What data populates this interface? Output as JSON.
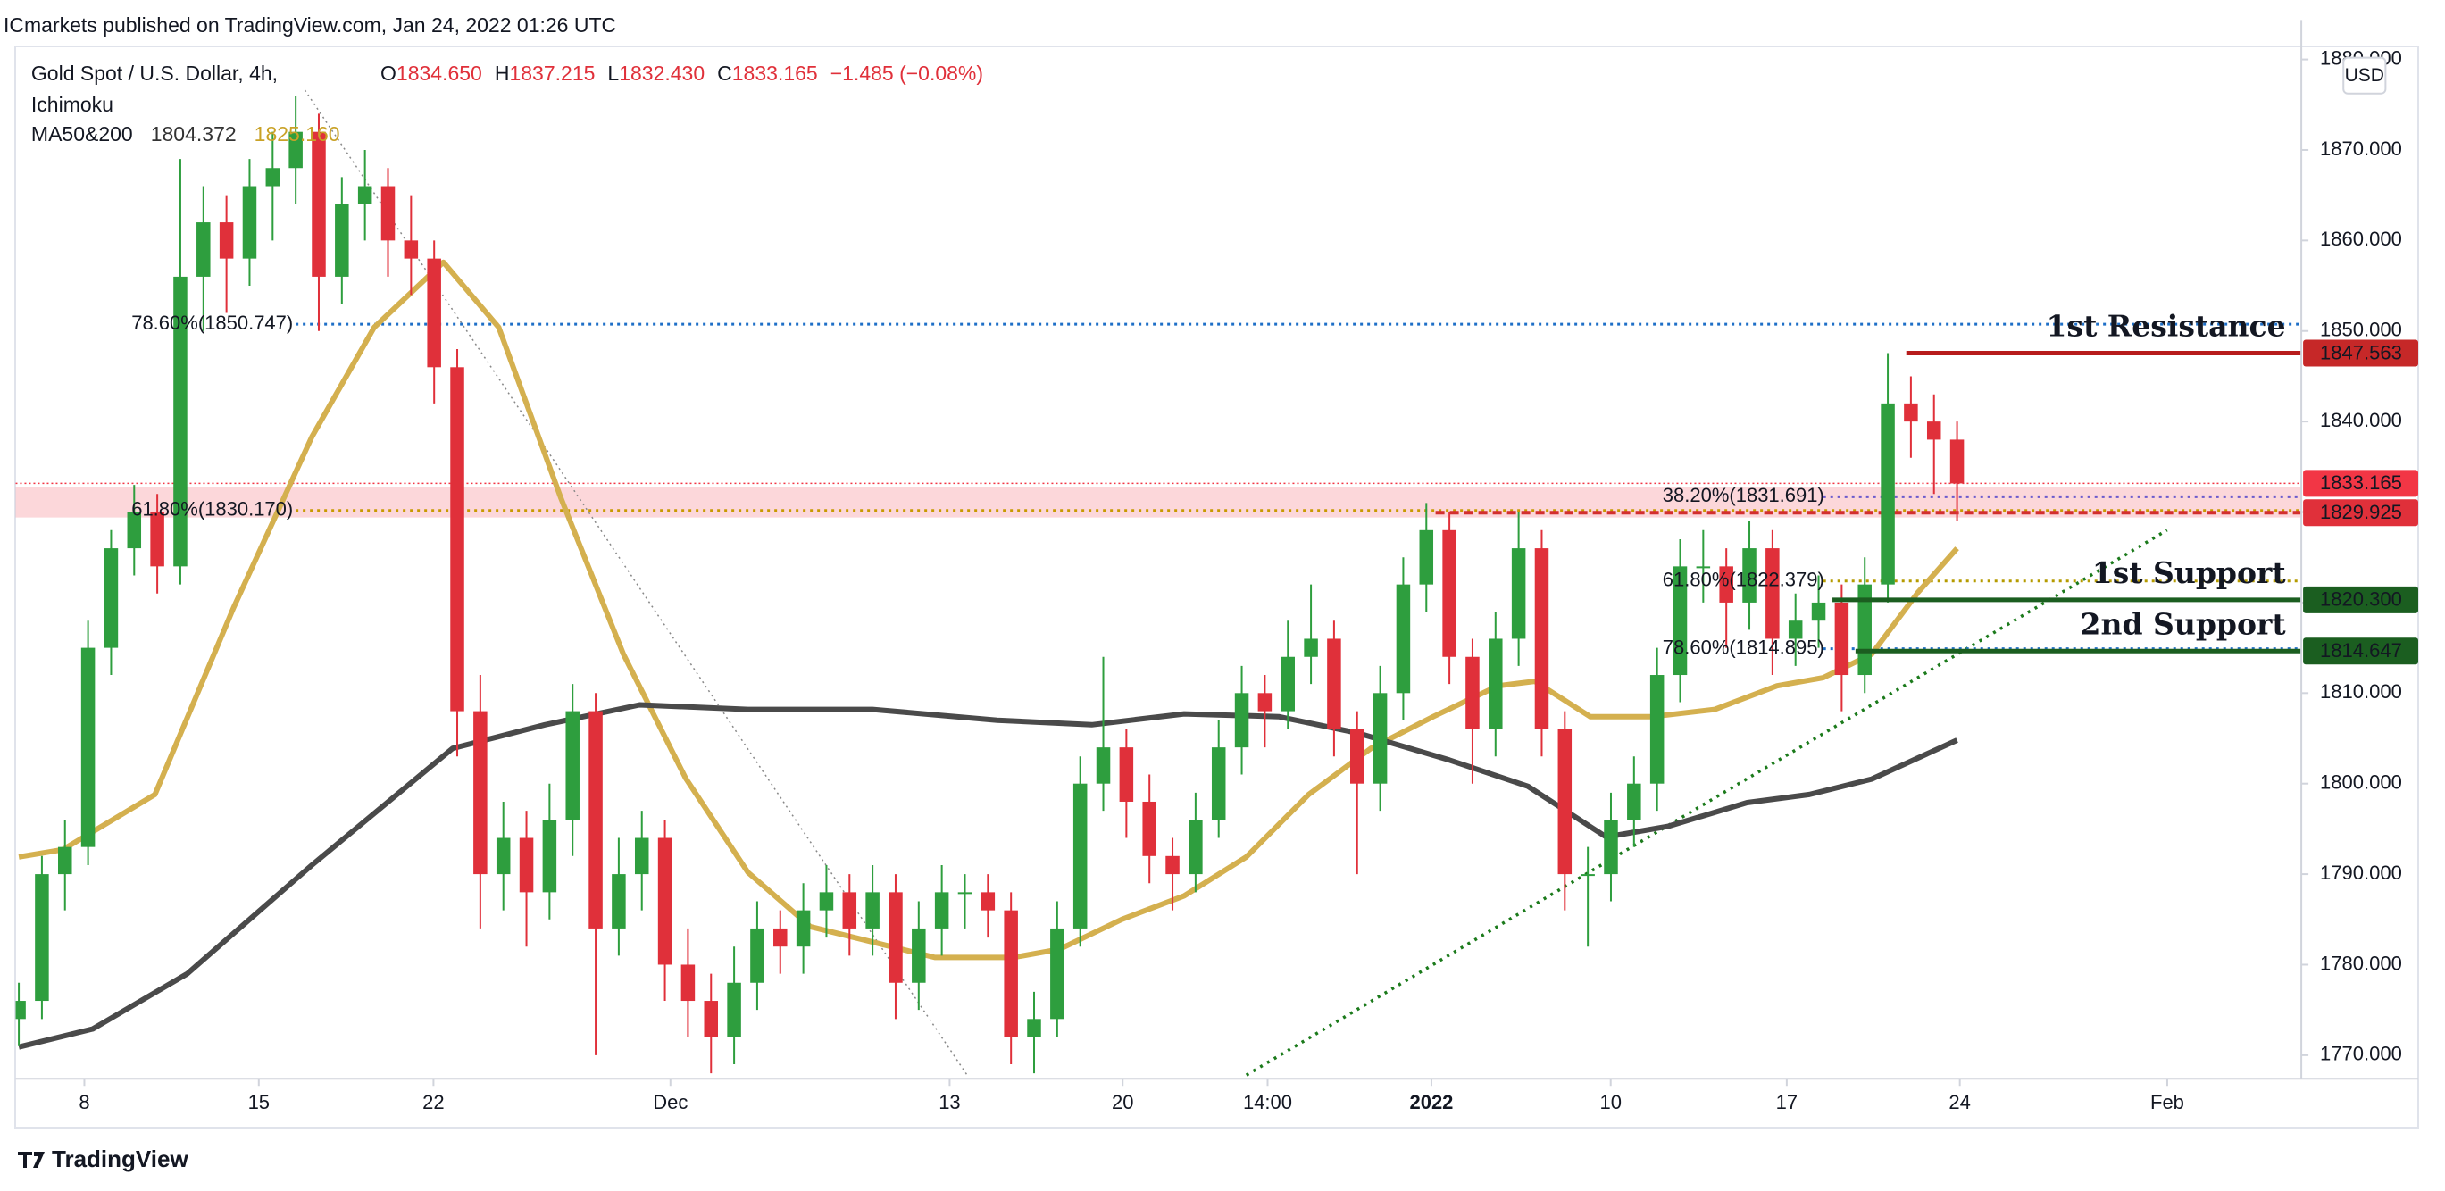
{
  "header": "ICmarkets published on TradingView.com, Jan 24, 2022 01:26 UTC",
  "footer_logo": "TradingView",
  "chart_data": {
    "type": "candlestick",
    "symbol": "Gold Spot / U.S. Dollar, 4h,",
    "ohlc_legend": [
      {
        "label": "O",
        "value": "1834.650"
      },
      {
        "label": "H",
        "value": "1837.215"
      },
      {
        "label": "L",
        "value": "1832.430"
      },
      {
        "label": "C",
        "value": "1833.165"
      }
    ],
    "change": "−1.485 (−0.08%)",
    "indicators": [
      "Ichimoku"
    ],
    "ma_legend": {
      "label": "MA50&200",
      "values": [
        "1804.372",
        "1825.160"
      ],
      "colors": [
        "#333333",
        "#c9a227"
      ]
    },
    "currency": "USD",
    "up_color": "#2e9e3e",
    "down_color": "#e0303a",
    "candles": [
      [
        1774,
        1778,
        1771,
        1776
      ],
      [
        1776,
        1792,
        1774,
        1790
      ],
      [
        1790,
        1796,
        1786,
        1793
      ],
      [
        1793,
        1818,
        1791,
        1815
      ],
      [
        1815,
        1828,
        1812,
        1826
      ],
      [
        1826,
        1833,
        1823,
        1830
      ],
      [
        1830,
        1832,
        1821,
        1824
      ],
      [
        1824,
        1869,
        1822,
        1856
      ],
      [
        1856,
        1866,
        1850,
        1862
      ],
      [
        1862,
        1865,
        1852,
        1858
      ],
      [
        1858,
        1869,
        1855,
        1866
      ],
      [
        1866,
        1872,
        1860,
        1868
      ],
      [
        1868,
        1876,
        1864,
        1872
      ],
      [
        1872,
        1874,
        1850,
        1856
      ],
      [
        1856,
        1867,
        1853,
        1864
      ],
      [
        1864,
        1870,
        1860,
        1866
      ],
      [
        1866,
        1868,
        1856,
        1860
      ],
      [
        1860,
        1865,
        1854,
        1858
      ],
      [
        1858,
        1860,
        1842,
        1846
      ],
      [
        1846,
        1848,
        1803,
        1808
      ],
      [
        1808,
        1812,
        1784,
        1790
      ],
      [
        1790,
        1798,
        1786,
        1794
      ],
      [
        1794,
        1797,
        1782,
        1788
      ],
      [
        1788,
        1800,
        1785,
        1796
      ],
      [
        1796,
        1811,
        1792,
        1808
      ],
      [
        1808,
        1810,
        1770,
        1784
      ],
      [
        1784,
        1794,
        1781,
        1790
      ],
      [
        1790,
        1797,
        1786,
        1794
      ],
      [
        1794,
        1796,
        1776,
        1780
      ],
      [
        1780,
        1784,
        1772,
        1776
      ],
      [
        1776,
        1779,
        1768,
        1772
      ],
      [
        1772,
        1782,
        1769,
        1778
      ],
      [
        1778,
        1787,
        1775,
        1784
      ],
      [
        1784,
        1786,
        1779,
        1782
      ],
      [
        1782,
        1789,
        1779,
        1786
      ],
      [
        1786,
        1791,
        1783,
        1788
      ],
      [
        1788,
        1790,
        1781,
        1784
      ],
      [
        1784,
        1791,
        1781,
        1788
      ],
      [
        1788,
        1790,
        1774,
        1778
      ],
      [
        1778,
        1787,
        1775,
        1784
      ],
      [
        1784,
        1791,
        1781,
        1788
      ],
      [
        1788,
        1790,
        1784,
        1788
      ],
      [
        1788,
        1790,
        1783,
        1786
      ],
      [
        1786,
        1788,
        1769,
        1772
      ],
      [
        1772,
        1777,
        1768,
        1774
      ],
      [
        1774,
        1787,
        1772,
        1784
      ],
      [
        1784,
        1803,
        1782,
        1800
      ],
      [
        1800,
        1814,
        1797,
        1804
      ],
      [
        1804,
        1806,
        1794,
        1798
      ],
      [
        1798,
        1801,
        1789,
        1792
      ],
      [
        1792,
        1794,
        1786,
        1790
      ],
      [
        1790,
        1799,
        1788,
        1796
      ],
      [
        1796,
        1807,
        1794,
        1804
      ],
      [
        1804,
        1813,
        1801,
        1810
      ],
      [
        1810,
        1812,
        1804,
        1808
      ],
      [
        1808,
        1818,
        1806,
        1814
      ],
      [
        1814,
        1822,
        1811,
        1816
      ],
      [
        1816,
        1818,
        1803,
        1806
      ],
      [
        1806,
        1808,
        1790,
        1800
      ],
      [
        1800,
        1813,
        1797,
        1810
      ],
      [
        1810,
        1825,
        1807,
        1822
      ],
      [
        1822,
        1831,
        1819,
        1828
      ],
      [
        1828,
        1830,
        1811,
        1814
      ],
      [
        1814,
        1816,
        1800,
        1806
      ],
      [
        1806,
        1819,
        1803,
        1816
      ],
      [
        1816,
        1830,
        1813,
        1826
      ],
      [
        1826,
        1828,
        1803,
        1806
      ],
      [
        1806,
        1808,
        1786,
        1790
      ],
      [
        1790,
        1793,
        1782,
        1790
      ],
      [
        1790,
        1799,
        1787,
        1796
      ],
      [
        1796,
        1803,
        1793,
        1800
      ],
      [
        1800,
        1815,
        1797,
        1812
      ],
      [
        1812,
        1827,
        1809,
        1824
      ],
      [
        1824,
        1828,
        1820,
        1824
      ],
      [
        1824,
        1826,
        1815,
        1820
      ],
      [
        1820,
        1829,
        1817,
        1826
      ],
      [
        1826,
        1828,
        1812,
        1816
      ],
      [
        1816,
        1821,
        1813,
        1818
      ],
      [
        1818,
        1823,
        1815,
        1820
      ],
      [
        1820,
        1822,
        1808,
        1812
      ],
      [
        1812,
        1825,
        1810,
        1822
      ],
      [
        1822,
        1847.563,
        1820,
        1842
      ],
      [
        1842,
        1845,
        1836,
        1840
      ],
      [
        1840,
        1843,
        1832,
        1838
      ],
      [
        1838,
        1840,
        1829,
        1833.165
      ]
    ],
    "ma_lines": [
      {
        "color": "#d4b04f",
        "x": [
          0,
          1.9,
          5.9,
          9.3,
          12.7,
          15.4,
          18.4,
          20.8,
          23.5,
          26.2,
          28.9,
          31.6,
          34.3,
          37.0,
          39.7,
          43.1,
          45.1,
          47.8,
          50.5,
          53.2,
          55.9,
          58.6,
          61.3,
          64.1,
          65.7,
          68.1,
          70.8,
          73.5,
          76.2,
          78.2,
          80.3,
          82.3,
          84.0
        ],
        "values": [
          1791.9,
          1792.7,
          1798.8,
          1819.4,
          1838.3,
          1850.4,
          1857.6,
          1850.4,
          1831.5,
          1814.3,
          1800.6,
          1790.2,
          1784.2,
          1782.5,
          1780.8,
          1780.8,
          1781.7,
          1785.0,
          1787.6,
          1791.9,
          1798.8,
          1803.9,
          1807.4,
          1810.8,
          1811.3,
          1807.4,
          1807.4,
          1808.2,
          1810.8,
          1811.7,
          1814.3,
          1821.1,
          1826.0
        ]
      },
      {
        "color": "#4a4a4a",
        "x": [
          0,
          3.2,
          7.3,
          12.7,
          18.8,
          22.8,
          26.9,
          31.6,
          37.0,
          42.4,
          46.5,
          50.5,
          54.6,
          58.0,
          62.0,
          65.4,
          68.8,
          71.5,
          74.9,
          77.6,
          80.3,
          84.0
        ],
        "values": [
          1770.9,
          1772.9,
          1779.0,
          1791.0,
          1803.9,
          1806.5,
          1808.7,
          1808.2,
          1808.2,
          1807.0,
          1806.5,
          1807.7,
          1807.4,
          1805.6,
          1802.6,
          1799.7,
          1794.1,
          1795.3,
          1797.9,
          1798.8,
          1800.5,
          1804.8
        ]
      }
    ],
    "xlim": [
      -0.14,
      98.92
    ],
    "xticks": [
      {
        "value": 2.84,
        "label": "8"
      },
      {
        "value": 10.4,
        "label": "15"
      },
      {
        "value": 17.97,
        "label": "22"
      },
      {
        "value": 28.24,
        "label": "Dec"
      },
      {
        "value": 40.34,
        "label": "13"
      },
      {
        "value": 47.84,
        "label": "20"
      },
      {
        "value": 54.12,
        "label": "14:00"
      },
      {
        "value": 61.22,
        "label": "2022"
      },
      {
        "value": 68.99,
        "label": "10"
      },
      {
        "value": 76.62,
        "label": "17"
      },
      {
        "value": 84.12,
        "label": "24"
      },
      {
        "value": 93.11,
        "label": "Feb"
      }
    ],
    "ylim": [
      1767.4,
      1881.4
    ],
    "yticks": [
      {
        "value": 1770,
        "label": "1770.000"
      },
      {
        "value": 1780,
        "label": "1780.000"
      },
      {
        "value": 1790,
        "label": "1790.000"
      },
      {
        "value": 1800,
        "label": "1800.000"
      },
      {
        "value": 1810,
        "label": "1810.000"
      },
      {
        "value": 1820,
        "label": "1820.000"
      },
      {
        "value": 1830,
        "label": "1830.000"
      },
      {
        "value": 1840,
        "label": "1840.000"
      },
      {
        "value": 1850,
        "label": "1850.000"
      },
      {
        "value": 1860,
        "label": "1860.000"
      },
      {
        "value": 1870,
        "label": "1870.000"
      },
      {
        "value": 1880,
        "label": "1880.000"
      }
    ],
    "zone": {
      "range": [
        1829.4,
        1832.8
      ],
      "color": "rgba(242,54,69,0.2)"
    },
    "levels": [
      {
        "label": "78.60%(1850.747)",
        "value": 1850.747,
        "color": "#1e6fc7",
        "start": 12.0
      },
      {
        "label": "61.80%(1830.170)",
        "value": 1830.17,
        "color": "#c79a00",
        "start": 12.0
      },
      {
        "label": "38.20%(1831.691)",
        "value": 1831.691,
        "color": "#6a5acd",
        "start": 78.2
      },
      {
        "label": "61.80%(1822.379)",
        "value": 1822.379,
        "color": "#b59b00",
        "start": 78.2
      },
      {
        "label": "78.60%(1814.895)",
        "value": 1814.895,
        "color": "#1e6fc7",
        "start": 78.2
      }
    ],
    "dashed_level": {
      "value": 1829.925,
      "color": "#d32f2f",
      "start": 61.4
    },
    "key_levels": [
      {
        "label": "1st Resistance",
        "value": 1847.563,
        "color": "#b71c1c",
        "start": 81.8
      },
      {
        "label": "1st Support",
        "value": 1820.3,
        "color": "#1b5e20",
        "start": 78.6
      },
      {
        "label": "2nd Support",
        "value": 1814.647,
        "color": "#1b5e20",
        "start": 79.6
      }
    ],
    "price_tags": [
      {
        "value": 1847.563,
        "label": "1847.563",
        "color": "#c62828"
      },
      {
        "value": 1833.165,
        "label": "1833.165",
        "color": "#f23645"
      },
      {
        "value": 1829.925,
        "label": "1829.925",
        "color": "#e0303a"
      },
      {
        "value": 1820.3,
        "label": "1820.300",
        "color": "#1b5e20"
      },
      {
        "value": 1814.647,
        "label": "1814.647",
        "color": "#1b5e20"
      }
    ],
    "trendlines": [
      {
        "x": [
          53.2,
          93.1
        ],
        "y": [
          1767.8,
          1828.0
        ],
        "color": "#1b7a1b"
      },
      {
        "x": [
          12.4,
          41.1
        ],
        "y": [
          1876.6,
          1767.8
        ],
        "color": "#888888"
      }
    ]
  }
}
